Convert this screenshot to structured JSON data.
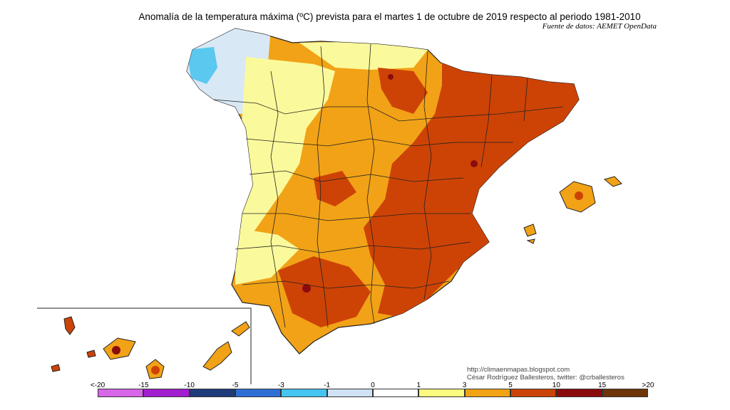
{
  "title": "Anomalía de la temperatura máxima (ºC) prevista para el martes 1 de octubre de 2019 respecto al periodo 1981-2010",
  "source": "Fuente de datos: AEMET OpenData",
  "credit": {
    "line1": "http://climaenmapas.blogspot.com",
    "line2": "César Rodríguez Ballesteros, twitter: @crballesteros"
  },
  "legend": {
    "labels": [
      "<-20",
      "-15",
      "-10",
      "-5",
      "-3",
      "-1",
      "0",
      "1",
      "3",
      "5",
      "10",
      "15",
      ">20"
    ],
    "colors": [
      "#d866e8",
      "#a21fd0",
      "#1f3b7a",
      "#2e6fd6",
      "#44c4f0",
      "#cfe3f4",
      "#ffffff",
      "#fafa7e",
      "#f2a215",
      "#cc4306",
      "#8a0b0b",
      "#6e3608"
    ]
  },
  "palette": {
    "cool_light": "#d8e8f5",
    "cool": "#5ac8ef",
    "warm_light": "#fafa9c",
    "warm": "#f2a216",
    "hot": "#cd4306",
    "very_hot": "#8b0c0c",
    "border": "#222222"
  }
}
